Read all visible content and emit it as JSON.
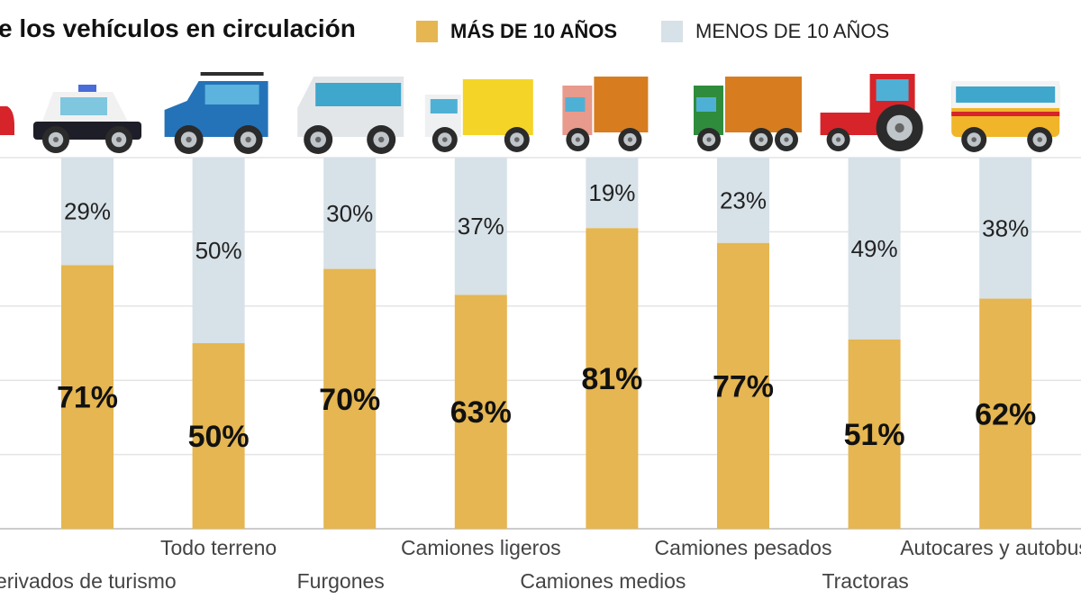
{
  "chart_data": {
    "type": "bar",
    "stacked": true,
    "title": "e los vehículos en circulación",
    "categories": [
      "Derivados de turismo",
      "Todo terreno",
      "Furgones",
      "Camiones ligeros",
      "Camiones medios",
      "Camiones pesados",
      "Tractoras",
      "Autocares y autobuses"
    ],
    "series": [
      {
        "name": "MÁS DE 10 AÑOS",
        "color": "#e5b651",
        "values": [
          71,
          50,
          70,
          63,
          81,
          77,
          51,
          62
        ],
        "labels": [
          "71%",
          "50%",
          "70%",
          "63%",
          "81%",
          "77%",
          "51%",
          "62%"
        ]
      },
      {
        "name": "MENOS DE 10 AÑOS",
        "color": "#d7e1e8",
        "values": [
          29,
          50,
          30,
          37,
          19,
          23,
          49,
          38
        ],
        "labels": [
          "29%",
          "50%",
          "30%",
          "37%",
          "19%",
          "23%",
          "49%",
          "38%"
        ]
      }
    ],
    "ylim": [
      0,
      100
    ],
    "grid": true,
    "legend": "top-right",
    "icons": [
      "police-car-icon",
      "suv-icon",
      "van-icon",
      "light-truck-icon",
      "medium-truck-icon",
      "heavy-truck-icon",
      "tractor-icon",
      "bus-icon"
    ]
  }
}
